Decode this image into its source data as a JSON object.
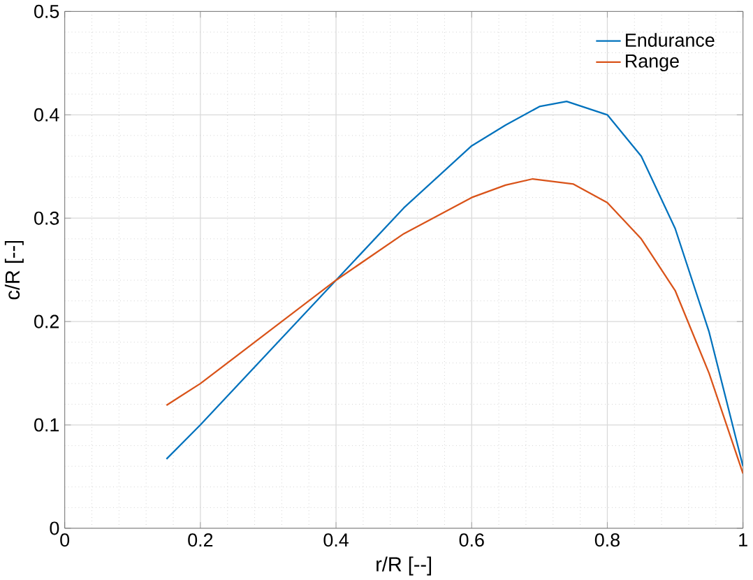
{
  "chart_data": {
    "type": "line",
    "xlabel": "r/R [--]",
    "ylabel": "c/R [--]",
    "xlim": [
      0,
      1
    ],
    "ylim": [
      0,
      0.5
    ],
    "xticks": [
      0,
      0.2,
      0.4,
      0.6,
      0.8,
      1
    ],
    "yticks": [
      0,
      0.1,
      0.2,
      0.3,
      0.4,
      0.5
    ],
    "grid": true,
    "legend": "top right",
    "series": [
      {
        "name": "Endurance",
        "color": "#0072bd",
        "x": [
          0.15,
          0.2,
          0.3,
          0.4,
          0.5,
          0.6,
          0.65,
          0.7,
          0.74,
          0.8,
          0.85,
          0.9,
          0.95,
          1.0
        ],
        "values": [
          0.067,
          0.1,
          0.17,
          0.24,
          0.31,
          0.37,
          0.39,
          0.408,
          0.413,
          0.4,
          0.36,
          0.29,
          0.19,
          0.06
        ]
      },
      {
        "name": "Range",
        "color": "#d95319",
        "x": [
          0.15,
          0.2,
          0.3,
          0.4,
          0.5,
          0.6,
          0.65,
          0.69,
          0.75,
          0.8,
          0.85,
          0.9,
          0.95,
          1.0
        ],
        "values": [
          0.119,
          0.14,
          0.19,
          0.24,
          0.285,
          0.32,
          0.332,
          0.338,
          0.333,
          0.315,
          0.28,
          0.23,
          0.15,
          0.053
        ]
      }
    ]
  }
}
